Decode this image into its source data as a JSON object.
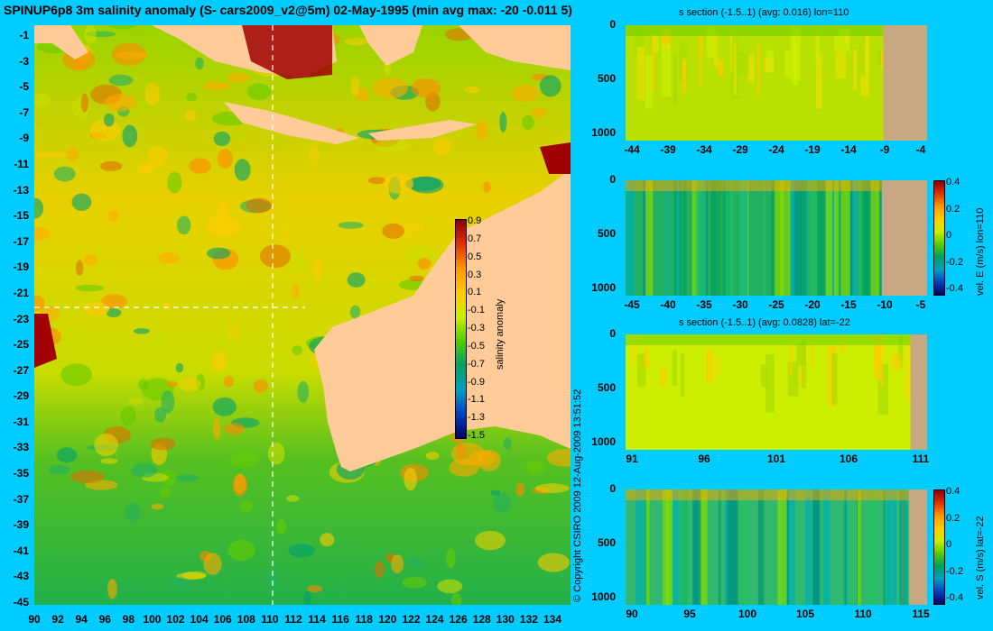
{
  "title": "SPINUP6p8 3m salinity anomaly (S- cars2009_v2@5m) 02-May-1995 (min avg max: -20 -0.011 5)",
  "copyright": "© Copyright CSIRO 2009  12-Aug-2009 13:51:52",
  "colors": {
    "background": "#00ccff",
    "land": "#ffcc99",
    "section_land": "#c8a882"
  },
  "chart_data": [
    {
      "type": "heatmap",
      "name": "map",
      "x_ticks": [
        "90",
        "92",
        "94",
        "96",
        "98",
        "100",
        "102",
        "104",
        "106",
        "108",
        "110",
        "112",
        "114",
        "116",
        "118",
        "120",
        "122",
        "124",
        "126",
        "128",
        "130",
        "132",
        "134"
      ],
      "y_ticks": [
        "-1",
        "-3",
        "-5",
        "-7",
        "-9",
        "-11",
        "-13",
        "-15",
        "-17",
        "-19",
        "-21",
        "-23",
        "-25",
        "-27",
        "-29",
        "-31",
        "-33",
        "-35",
        "-37",
        "-39",
        "-41",
        "-43",
        "-45"
      ],
      "xlim": [
        90,
        135
      ],
      "ylim": [
        -45,
        0
      ],
      "crosshair": {
        "lon": 110,
        "lat": -22
      },
      "colorbar": {
        "label": "salinity anomaly",
        "ticks": [
          "0.9",
          "0.7",
          "0.5",
          "0.3",
          "0.1",
          "-0.1",
          "-0.3",
          "-0.5",
          "-0.7",
          "-0.9",
          "-1.1",
          "-1.3",
          "-1.5"
        ],
        "range": [
          -1.5,
          1.0
        ]
      }
    },
    {
      "type": "heatmap",
      "name": "s-section-lon",
      "title": "s section (-1.5..1) (avg: 0.016) lon=110",
      "x_ticks": [
        "-44",
        "-39",
        "-34",
        "-29",
        "-24",
        "-19",
        "-14",
        "-9",
        "-4"
      ],
      "y_ticks": [
        "0",
        "500",
        "1000"
      ]
    },
    {
      "type": "heatmap",
      "name": "vel-e-section",
      "x_ticks": [
        "-45",
        "-40",
        "-35",
        "-30",
        "-25",
        "-20",
        "-15",
        "-10",
        "-5"
      ],
      "y_ticks": [
        "0",
        "500",
        "1000"
      ],
      "colorbar": {
        "label": "vel. E (m/s) lon=110",
        "ticks": [
          "0.4",
          "0.2",
          "0",
          "-0.2",
          "-0.4"
        ],
        "range": [
          -0.45,
          0.45
        ]
      }
    },
    {
      "type": "heatmap",
      "name": "s-section-lat",
      "title": "s section (-1.5..1) (avg: 0.0828) lat=-22",
      "x_ticks": [
        "91",
        "96",
        "101",
        "106",
        "111"
      ],
      "y_ticks": [
        "0",
        "500",
        "1000"
      ]
    },
    {
      "type": "heatmap",
      "name": "vel-s-section",
      "x_ticks": [
        "90",
        "95",
        "100",
        "105",
        "110",
        "115"
      ],
      "y_ticks": [
        "0",
        "500",
        "1000"
      ],
      "colorbar": {
        "label": "vel. S (m/s) lat=-22",
        "ticks": [
          "0.4",
          "0.2",
          "0",
          "-0.2",
          "-0.4"
        ],
        "range": [
          -0.45,
          0.45
        ]
      }
    }
  ]
}
